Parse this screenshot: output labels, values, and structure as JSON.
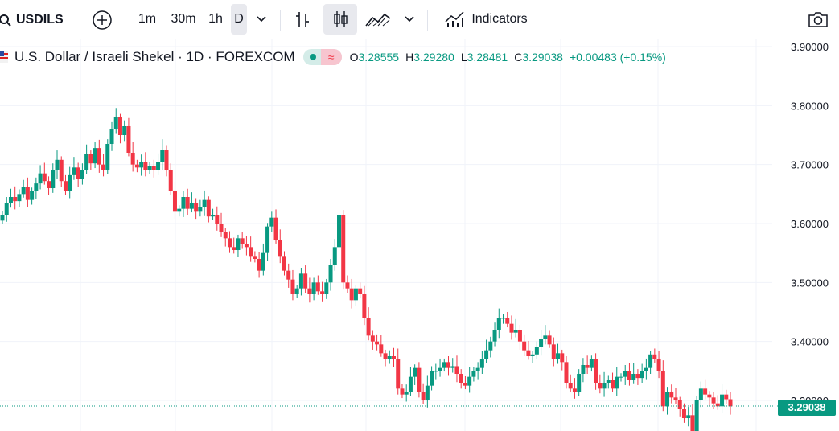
{
  "toolbar": {
    "symbol": "USDILS",
    "intervals": [
      "1m",
      "30m",
      "1h",
      "D"
    ],
    "active_interval": "D",
    "indicators_label": "Indicators",
    "icons": [
      "search-icon",
      "add-symbol-icon",
      "chevron-down-icon",
      "bar-chart-icon",
      "candle-chart-icon",
      "area-chart-icon",
      "chevron-down-icon",
      "indicators-icon",
      "camera-icon"
    ]
  },
  "legend": {
    "title": "U.S. Dollar / Israeli Shekel · 1D · FOREXCOM",
    "open_label": "O",
    "open": "3.28555",
    "high_label": "H",
    "high": "3.29280",
    "low_label": "L",
    "low": "3.28481",
    "close_label": "C",
    "close": "3.29038",
    "change": "+0.00483 (+0.15%)"
  },
  "colors": {
    "up": "#089981",
    "down": "#f23645",
    "grid": "#f0f3fa"
  },
  "last_price_label": "3.29038",
  "chart_data": {
    "type": "candlestick",
    "title": "U.S. Dollar / Israeli Shekel · 1D · FOREXCOM",
    "ylim": [
      3.22,
      3.91
    ],
    "y_ticks": [
      "3.90000",
      "3.80000",
      "3.70000",
      "3.60000",
      "3.50000",
      "3.40000",
      "3.30000"
    ],
    "y_tick_values": [
      3.9,
      3.8,
      3.7,
      3.6,
      3.5,
      3.4,
      3.3
    ],
    "last_close": 3.29038,
    "grid": true,
    "closes": [
      3.615,
      3.635,
      3.645,
      3.638,
      3.65,
      3.662,
      3.64,
      3.655,
      3.668,
      3.685,
      3.672,
      3.66,
      3.69,
      3.708,
      3.672,
      3.655,
      3.682,
      3.695,
      3.676,
      3.69,
      3.718,
      3.702,
      3.728,
      3.7,
      3.69,
      3.735,
      3.76,
      3.78,
      3.75,
      3.765,
      3.72,
      3.7,
      3.695,
      3.705,
      3.69,
      3.698,
      3.69,
      3.705,
      3.725,
      3.69,
      3.655,
      3.62,
      3.625,
      3.645,
      3.625,
      3.635,
      3.62,
      3.628,
      3.64,
      3.612,
      3.615,
      3.6,
      3.585,
      3.575,
      3.56,
      3.555,
      3.575,
      3.565,
      3.56,
      3.545,
      3.54,
      3.52,
      3.55,
      3.595,
      3.61,
      3.572,
      3.545,
      3.52,
      3.505,
      3.48,
      3.49,
      3.515,
      3.49,
      3.48,
      3.5,
      3.485,
      3.48,
      3.5,
      3.53,
      3.56,
      3.615,
      3.5,
      3.49,
      3.47,
      3.49,
      3.48,
      3.44,
      3.41,
      3.4,
      3.395,
      3.38,
      3.37,
      3.375,
      3.37,
      3.32,
      3.31,
      3.315,
      3.34,
      3.355,
      3.315,
      3.3,
      3.325,
      3.35,
      3.35,
      3.355,
      3.365,
      3.355,
      3.358,
      3.345,
      3.33,
      3.325,
      3.34,
      3.35,
      3.355,
      3.37,
      3.385,
      3.4,
      3.42,
      3.44,
      3.44,
      3.43,
      3.415,
      3.42,
      3.4,
      3.385,
      3.375,
      3.378,
      3.39,
      3.405,
      3.41,
      3.395,
      3.37,
      3.38,
      3.365,
      3.33,
      3.32,
      3.315,
      3.345,
      3.36,
      3.355,
      3.37,
      3.33,
      3.32,
      3.33,
      3.335,
      3.32,
      3.34,
      3.34,
      3.35,
      3.335,
      3.345,
      3.338,
      3.35,
      3.355,
      3.378,
      3.37,
      3.35,
      3.29,
      3.315,
      3.305,
      3.3,
      3.285,
      3.27,
      3.275,
      3.248,
      3.3,
      3.32,
      3.31,
      3.305,
      3.295,
      3.29,
      3.31,
      3.302,
      3.29
    ]
  }
}
